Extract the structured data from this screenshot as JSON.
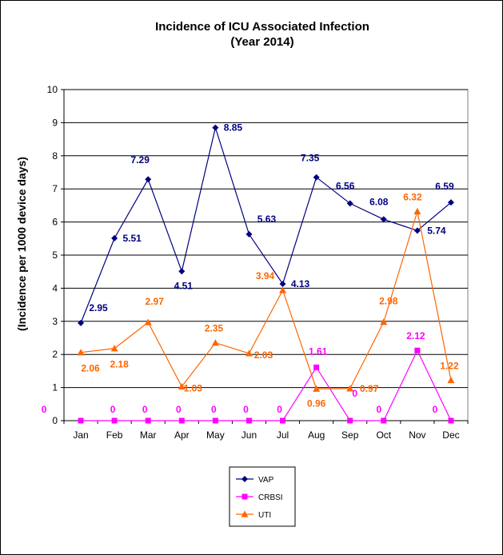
{
  "chart_data": {
    "type": "line",
    "title": "Incidence of ICU Associated Infection",
    "subtitle": "(Year 2014)",
    "xlabel": "",
    "ylabel": "(Incidence per 1000 device days)",
    "categories": [
      "Jan",
      "Feb",
      "Mar",
      "Apr",
      "May",
      "Jun",
      "Jul",
      "Aug",
      "Sep",
      "Oct",
      "Nov",
      "Dec"
    ],
    "ylim": [
      0,
      10
    ],
    "yticks": [
      0,
      1,
      2,
      3,
      4,
      5,
      6,
      7,
      8,
      9,
      10
    ],
    "grid": true,
    "legend_position": "bottom",
    "series": [
      {
        "name": "VAP",
        "color": "#000080",
        "marker": "diamond",
        "values": [
          2.95,
          5.51,
          7.29,
          4.51,
          8.85,
          5.63,
          4.13,
          7.35,
          6.56,
          6.08,
          5.74,
          6.59
        ]
      },
      {
        "name": "CRBSI",
        "color": "#FF00FF",
        "marker": "square",
        "values": [
          0,
          0,
          0,
          0,
          0,
          0,
          0,
          1.61,
          0,
          0,
          2.12,
          0
        ]
      },
      {
        "name": "UTI",
        "color": "#FF6600",
        "marker": "triangle",
        "values": [
          2.06,
          2.18,
          2.97,
          1.03,
          2.35,
          2.03,
          3.94,
          0.96,
          0.97,
          2.98,
          6.32,
          1.22
        ]
      }
    ]
  }
}
